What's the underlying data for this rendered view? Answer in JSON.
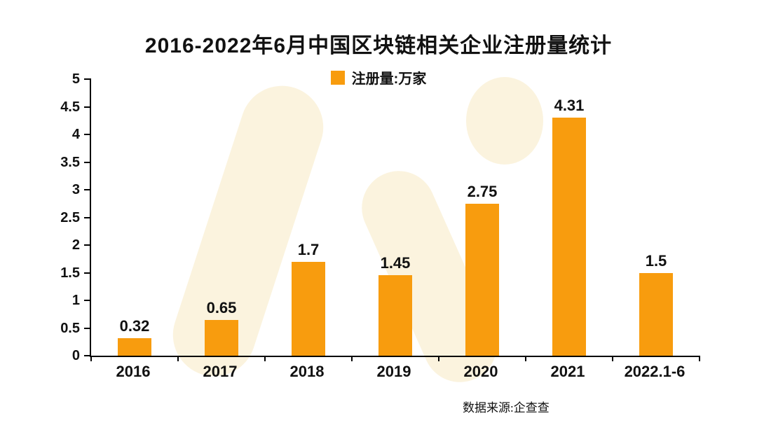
{
  "header": {
    "title": "2016-2022年6月中国区块链相关企业注册量统计"
  },
  "legend": {
    "label": "注册量:万家"
  },
  "footer": {
    "source": "数据来源:企查查"
  },
  "colors": {
    "bar": "#F89C0E",
    "axis": "#000000",
    "watermark": "#FBF3DE"
  },
  "chart_data": {
    "type": "bar",
    "title": "2016-2022年6月中国区块链相关企业注册量统计",
    "legend": "注册量:万家",
    "categories": [
      "2016",
      "2017",
      "2018",
      "2019",
      "2020",
      "2021",
      "2022.1-6"
    ],
    "values": [
      0.32,
      0.65,
      1.7,
      1.45,
      2.75,
      4.31,
      1.5
    ],
    "xlabel": "",
    "ylabel": "",
    "ylim": [
      0,
      5
    ],
    "ytick_step": 0.5,
    "bar_color": "#F89C0E",
    "grid": false,
    "legend_position": "top-center",
    "source": "数据来源:企查查"
  }
}
